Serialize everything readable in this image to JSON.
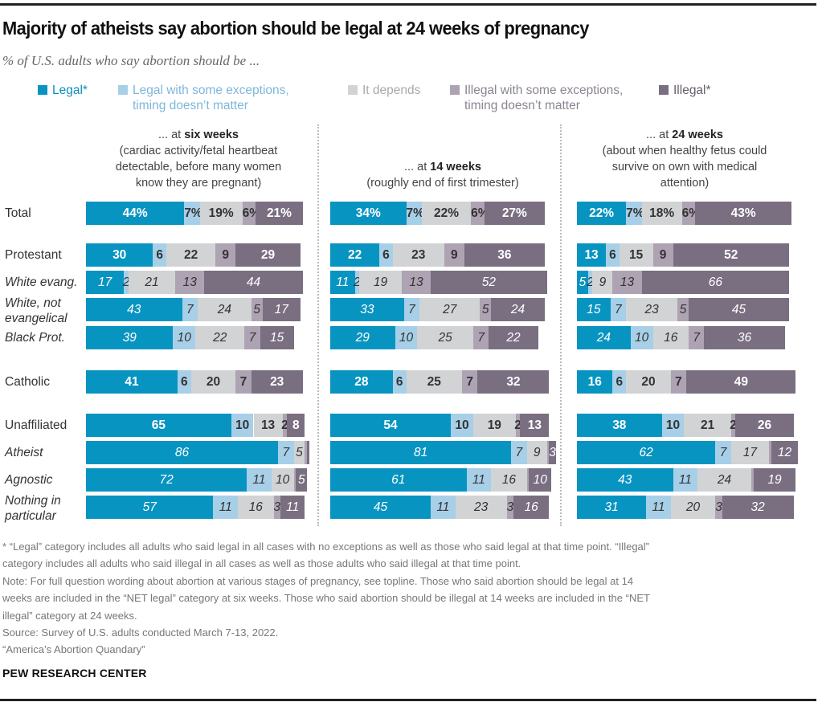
{
  "title": "Majority of atheists say abortion should be legal at 24 weeks of pregnancy",
  "subtitle": "% of U.S. adults who say abortion should be ...",
  "colors": {
    "legal": "#0894c1",
    "legal_exceptions": "#a7cfe7",
    "depends": "#d2d3d5",
    "illegal_exceptions": "#ada3b2",
    "illegal": "#7a6e81",
    "legal_text": "#0a8fbf",
    "legal_exceptions_text": "#7db7da",
    "depends_text": "#a9a9a9",
    "illegal_exceptions_text": "#8d8492",
    "illegal_text": "#675d6d"
  },
  "legend": [
    {
      "key": "legal",
      "line1": "Legal*",
      "line2": ""
    },
    {
      "key": "legal_exceptions",
      "line1": "Legal with some exceptions,",
      "line2": "timing doesn’t matter"
    },
    {
      "key": "depends",
      "line1": "It depends",
      "line2": ""
    },
    {
      "key": "illegal_exceptions",
      "line1": "Illegal with some exceptions,",
      "line2": "timing doesn’t matter"
    },
    {
      "key": "illegal",
      "line1": "Illegal*",
      "line2": ""
    }
  ],
  "panels": [
    {
      "prefix": "... at ",
      "bold": "six weeks",
      "desc": [
        "(cardiac activity/fetal heartbeat",
        "detectable, before many women",
        "know they are pregnant)"
      ]
    },
    {
      "prefix": "... at ",
      "bold": "14 weeks",
      "desc": [
        "(roughly end of first trimester)"
      ]
    },
    {
      "prefix": "... at ",
      "bold": "24 weeks",
      "desc": [
        "(about when healthy fetus could",
        "survive on own with medical",
        "attention)"
      ]
    }
  ],
  "chart_data": {
    "type": "bar",
    "orientation": "horizontal-stacked",
    "title": "Majority of atheists say abortion should be legal at 24 weeks of pregnancy",
    "subtitle": "% of U.S. adults who say abortion should be ...",
    "series_names": [
      "Legal*",
      "Legal with some exceptions, timing doesn’t matter",
      "It depends",
      "Illegal with some exceptions, timing doesn’t matter",
      "Illegal*"
    ],
    "categories": [
      {
        "label": "Total",
        "italic": false
      },
      {
        "label": "Protestant",
        "italic": false
      },
      {
        "label": "White evang.",
        "italic": true
      },
      {
        "label": "White, not evangelical",
        "italic": true
      },
      {
        "label": "Black Prot.",
        "italic": true
      },
      {
        "label": "Catholic",
        "italic": false
      },
      {
        "label": "Unaffiliated",
        "italic": false
      },
      {
        "label": "Atheist",
        "italic": true
      },
      {
        "label": "Agnostic",
        "italic": true
      },
      {
        "label": "Nothing in particular",
        "italic": true
      }
    ],
    "panels": [
      {
        "name": "six weeks",
        "values": [
          [
            44,
            7,
            19,
            6,
            21
          ],
          [
            30,
            6,
            22,
            9,
            29
          ],
          [
            17,
            2,
            21,
            13,
            44
          ],
          [
            43,
            7,
            24,
            5,
            17
          ],
          [
            39,
            10,
            22,
            7,
            15
          ],
          [
            41,
            6,
            20,
            7,
            23
          ],
          [
            65,
            10,
            13,
            2,
            8
          ],
          [
            86,
            7,
            5,
            1,
            1
          ],
          [
            72,
            11,
            10,
            1,
            5
          ],
          [
            57,
            11,
            16,
            3,
            11
          ]
        ],
        "labels": [
          [
            "44%",
            "7%",
            "19%",
            "6%",
            "21%"
          ],
          [
            "30",
            "6",
            "22",
            "9",
            "29"
          ],
          [
            "17",
            "2",
            "21",
            "13",
            "44"
          ],
          [
            "43",
            "7",
            "24",
            "5",
            "17"
          ],
          [
            "39",
            "10",
            "22",
            "7",
            "15"
          ],
          [
            "41",
            "6",
            "20",
            "7",
            "23"
          ],
          [
            "65",
            "10",
            "13",
            "2",
            "8"
          ],
          [
            "86",
            "7",
            "5",
            "",
            ""
          ],
          [
            "72",
            "11",
            "10",
            "",
            "5"
          ],
          [
            "57",
            "11",
            "16",
            "3",
            "11"
          ]
        ]
      },
      {
        "name": "14 weeks",
        "values": [
          [
            34,
            7,
            22,
            6,
            27
          ],
          [
            22,
            6,
            23,
            9,
            36
          ],
          [
            11,
            2,
            19,
            13,
            52
          ],
          [
            33,
            7,
            27,
            5,
            24
          ],
          [
            29,
            10,
            25,
            7,
            22
          ],
          [
            28,
            6,
            25,
            7,
            32
          ],
          [
            54,
            10,
            19,
            2,
            13
          ],
          [
            81,
            7,
            9,
            1,
            3
          ],
          [
            61,
            11,
            16,
            1,
            10
          ],
          [
            45,
            11,
            23,
            3,
            16
          ]
        ],
        "labels": [
          [
            "34%",
            "7%",
            "22%",
            "6%",
            "27%"
          ],
          [
            "22",
            "6",
            "23",
            "9",
            "36"
          ],
          [
            "11",
            "2",
            "19",
            "13",
            "52"
          ],
          [
            "33",
            "7",
            "27",
            "5",
            "24"
          ],
          [
            "29",
            "10",
            "25",
            "7",
            "22"
          ],
          [
            "28",
            "6",
            "25",
            "7",
            "32"
          ],
          [
            "54",
            "10",
            "19",
            "2",
            "13"
          ],
          [
            "81",
            "7",
            "9",
            "",
            "3"
          ],
          [
            "61",
            "11",
            "16",
            "",
            "10"
          ],
          [
            "45",
            "11",
            "23",
            "3",
            "16"
          ]
        ]
      },
      {
        "name": "24 weeks",
        "values": [
          [
            22,
            7,
            18,
            6,
            43
          ],
          [
            13,
            6,
            15,
            9,
            52
          ],
          [
            5,
            2,
            9,
            13,
            66
          ],
          [
            15,
            7,
            23,
            5,
            45
          ],
          [
            24,
            10,
            16,
            7,
            36
          ],
          [
            16,
            6,
            20,
            7,
            49
          ],
          [
            38,
            10,
            21,
            2,
            26
          ],
          [
            62,
            7,
            17,
            1,
            12
          ],
          [
            43,
            11,
            24,
            1,
            19
          ],
          [
            31,
            11,
            20,
            3,
            32
          ]
        ],
        "labels": [
          [
            "22%",
            "7%",
            "18%",
            "6%",
            "43%"
          ],
          [
            "13",
            "6",
            "15",
            "9",
            "52"
          ],
          [
            "5",
            "2",
            "9",
            "13",
            "66"
          ],
          [
            "15",
            "7",
            "23",
            "5",
            "45"
          ],
          [
            "24",
            "10",
            "16",
            "7",
            "36"
          ],
          [
            "16",
            "6",
            "20",
            "7",
            "49"
          ],
          [
            "38",
            "10",
            "21",
            "2",
            "26"
          ],
          [
            "62",
            "7",
            "17",
            "",
            "12"
          ],
          [
            "43",
            "11",
            "24",
            "",
            "19"
          ],
          [
            "31",
            "11",
            "20",
            "3",
            "32"
          ]
        ]
      }
    ],
    "xlim": [
      0,
      100
    ],
    "legend_position": "top"
  },
  "footnotes": [
    "* “Legal” category includes all adults who said legal in all cases with no exceptions as well as those who said legal at that time point. “Illegal”",
    "category includes all adults who said illegal in all cases as well as those adults who said illegal at that time point.",
    "Note: For full question wording about abortion at various stages of pregnancy, see topline. Those who said abortion should be legal at 14",
    "weeks are included in the “NET legal” category at six weeks. Those who said abortion should be illegal at 14 weeks are included in the “NET",
    "illegal” category at 24 weeks.",
    "Source: Survey of U.S. adults conducted March 7-13, 2022.",
    "“America’s Abortion Quandary”"
  ],
  "brand": "PEW RESEARCH CENTER"
}
